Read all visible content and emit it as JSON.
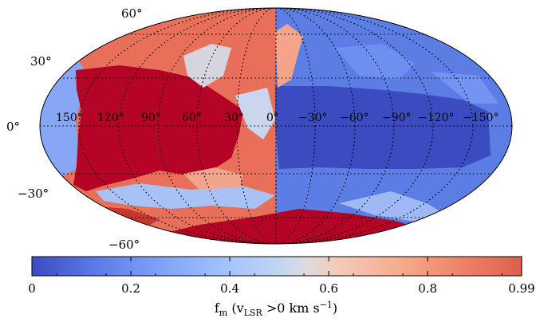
{
  "map": {
    "projection": "mollweide",
    "grid": "on",
    "grid_style": "dotted",
    "longitude_labels": [
      "150°",
      "120°",
      "90°",
      "60°",
      "30°",
      "0°",
      "−30°",
      "−60°",
      "−90°",
      "−120°",
      "−150°"
    ],
    "latitude_labels": [
      "60°",
      "30°",
      "0°",
      "−30°",
      "−60°"
    ],
    "colors": {
      "positive": "#b40426",
      "negative": "#3b4cc0",
      "neutral": "#dddcdc"
    }
  },
  "colorbar": {
    "colormap": "coolwarm",
    "tick_labels": [
      "0",
      "0.2",
      "0.4",
      "0.6",
      "0.8",
      "0.99"
    ],
    "tick_values": [
      0,
      0.2,
      0.4,
      0.6,
      0.8,
      0.99
    ],
    "label": {
      "f": "f",
      "f_sub": "m",
      "open": " (v",
      "v_sub": "LSR",
      "mid": " >0 km s",
      "exp": "−1",
      "close": ")"
    }
  }
}
